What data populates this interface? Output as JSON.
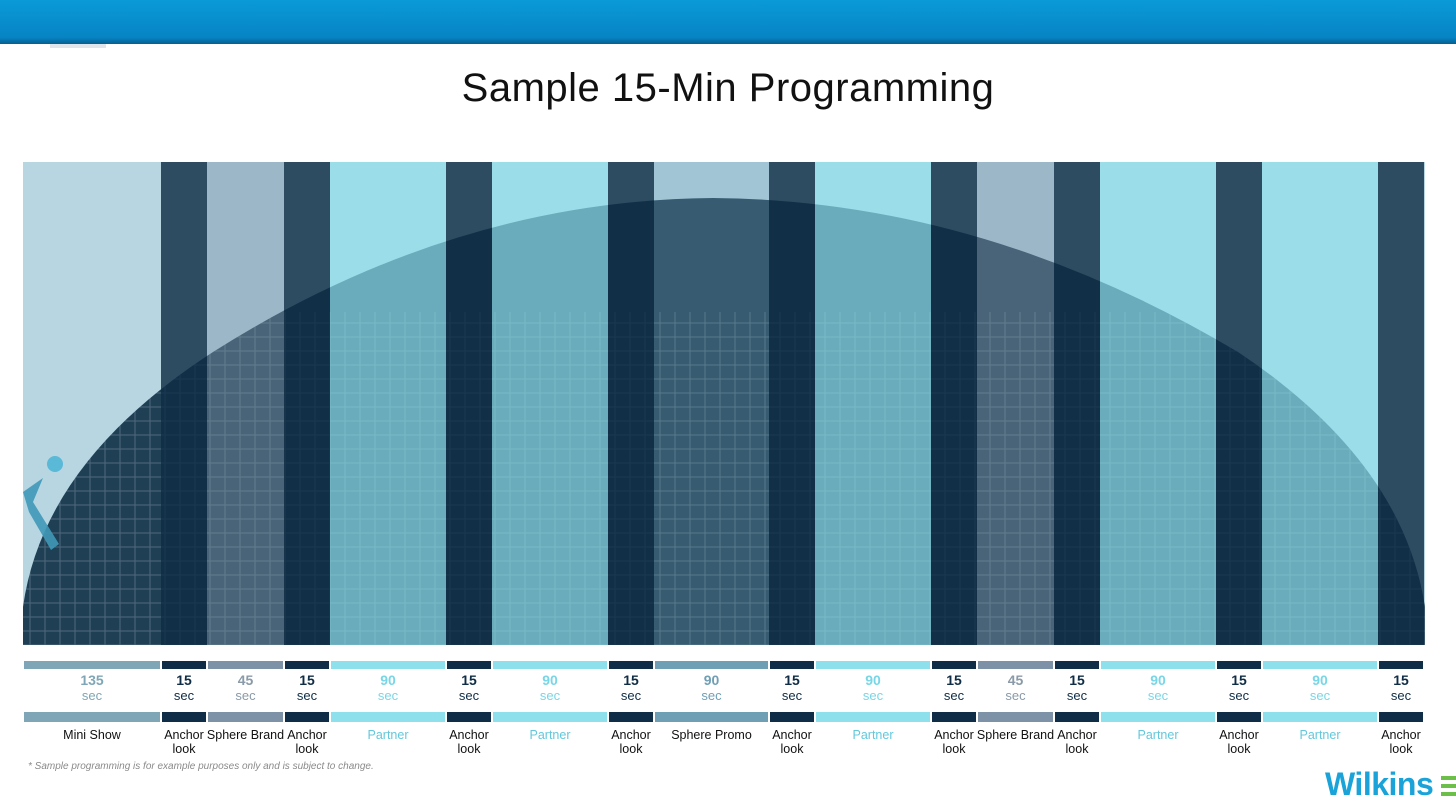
{
  "header": {
    "title": "Sample 15-Min Programming"
  },
  "footnote": "* Sample programming is for example purposes only and is subject to change.",
  "logo": {
    "text": "Wilkins"
  },
  "colors": {
    "mini_show": "#7fa6b6",
    "anchor": "#0f2d46",
    "brand": "#7d92a6",
    "partner": "#8ee0ec",
    "promo": "#6f9fb5"
  },
  "segments": [
    {
      "duration": "135",
      "unit": "sec",
      "label": "Mini Show",
      "kind": "mini_show"
    },
    {
      "duration": "15",
      "unit": "sec",
      "label": "Anchor look",
      "kind": "anchor"
    },
    {
      "duration": "45",
      "unit": "sec",
      "label": "Sphere Brand",
      "kind": "brand"
    },
    {
      "duration": "15",
      "unit": "sec",
      "label": "Anchor look",
      "kind": "anchor"
    },
    {
      "duration": "90",
      "unit": "sec",
      "label": "Partner",
      "kind": "partner"
    },
    {
      "duration": "15",
      "unit": "sec",
      "label": "Anchor look",
      "kind": "anchor"
    },
    {
      "duration": "90",
      "unit": "sec",
      "label": "Partner",
      "kind": "partner"
    },
    {
      "duration": "15",
      "unit": "sec",
      "label": "Anchor look",
      "kind": "anchor"
    },
    {
      "duration": "90",
      "unit": "sec",
      "label": "Sphere Promo",
      "kind": "promo"
    },
    {
      "duration": "15",
      "unit": "sec",
      "label": "Anchor look",
      "kind": "anchor"
    },
    {
      "duration": "90",
      "unit": "sec",
      "label": "Partner",
      "kind": "partner"
    },
    {
      "duration": "15",
      "unit": "sec",
      "label": "Anchor look",
      "kind": "anchor"
    },
    {
      "duration": "45",
      "unit": "sec",
      "label": "Sphere Brand",
      "kind": "brand"
    },
    {
      "duration": "15",
      "unit": "sec",
      "label": "Anchor look",
      "kind": "anchor"
    },
    {
      "duration": "90",
      "unit": "sec",
      "label": "Partner",
      "kind": "partner"
    },
    {
      "duration": "15",
      "unit": "sec",
      "label": "Anchor look",
      "kind": "anchor"
    },
    {
      "duration": "90",
      "unit": "sec",
      "label": "Partner",
      "kind": "partner"
    },
    {
      "duration": "15",
      "unit": "sec",
      "label": "Anchor look",
      "kind": "anchor"
    }
  ]
}
